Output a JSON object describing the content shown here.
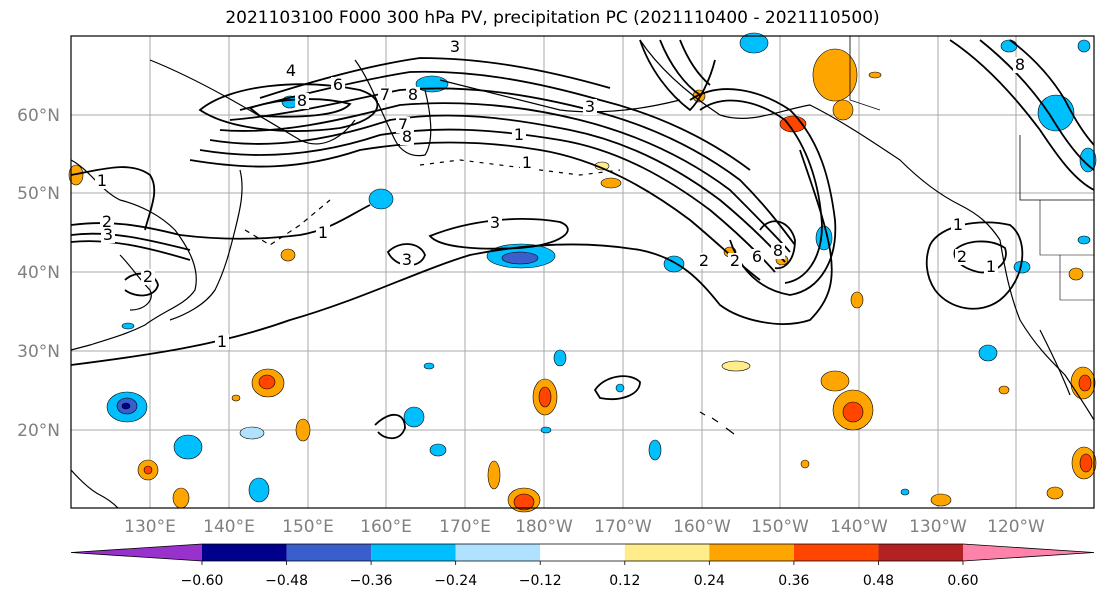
{
  "title": "2021103100 F000 300 hPa PV, precipitation PC (2021110400 - 2021110500)",
  "map": {
    "lat_ticks": [
      "60°N",
      "50°N",
      "40°N",
      "30°N",
      "20°N"
    ],
    "lon_ticks": [
      "130°E",
      "140°E",
      "150°E",
      "160°E",
      "170°E",
      "180°W",
      "170°W",
      "160°W",
      "150°W",
      "140°W",
      "130°W",
      "120°W"
    ],
    "pv_contour_labels": [
      "3",
      "4",
      "6",
      "7",
      "8",
      "8",
      "3",
      "1",
      "7",
      "8",
      "1",
      "2",
      "3",
      "1",
      "3",
      "3",
      "2",
      "2",
      "6",
      "8",
      "1",
      "2",
      "2",
      "1",
      "8",
      "1",
      "1"
    ]
  },
  "colorbar": {
    "tick_labels": [
      "−0.60",
      "−0.48",
      "−0.36",
      "−0.24",
      "−0.12",
      "0.12",
      "0.24",
      "0.36",
      "0.48",
      "0.60"
    ],
    "colors": [
      "#9932cc",
      "#00008b",
      "#3a5fcd",
      "#00bfff",
      "#b0e2ff",
      "#ffffff",
      "#ffec8b",
      "#ffa500",
      "#ff4500",
      "#b22222",
      "#ff82ab"
    ]
  }
}
